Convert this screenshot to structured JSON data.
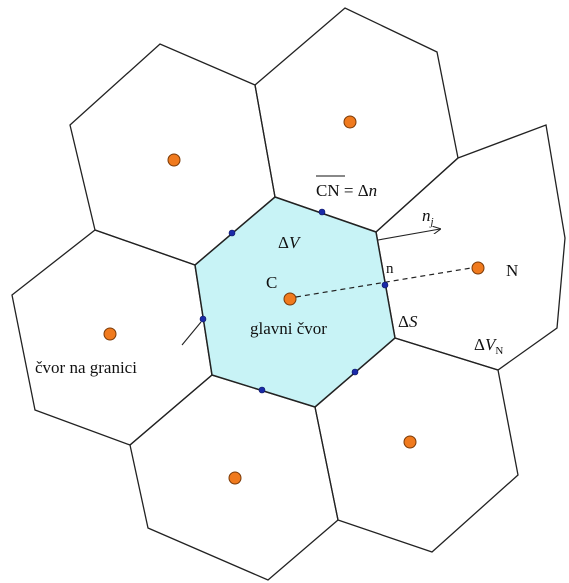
{
  "labels": {
    "cn_eq": "CN",
    "cn_eq_rhs": " = Δ",
    "cn_eq_n": "n",
    "delta_v": "Δ",
    "delta_v_var": "V",
    "normal": "n",
    "normal_sub": "j",
    "c": "C",
    "n_face": "n",
    "n_node": "N",
    "main_node": "glavni čvor",
    "delta_s": "Δ",
    "delta_s_var": "S",
    "boundary_node": "čvor na granici",
    "delta_vn": "Δ",
    "delta_vn_var": "V",
    "delta_vn_sub": "N"
  },
  "colors": {
    "center_cell_fill": "#c8f3f6",
    "node": "#f07a1e",
    "boundary_node": "#1a2aa8"
  }
}
